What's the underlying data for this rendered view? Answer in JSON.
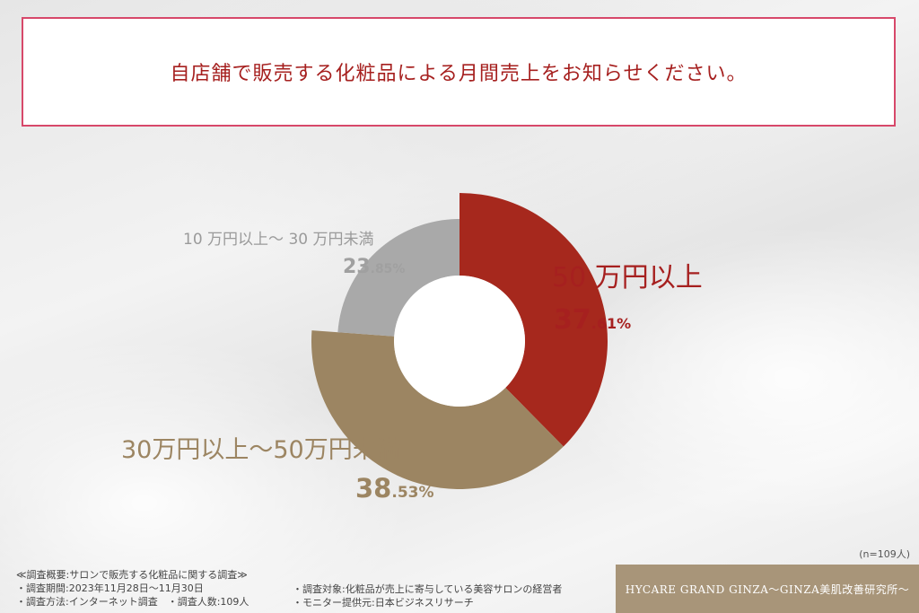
{
  "title": "自店舗で販売する化粧品による月間売上をお知らせください。",
  "chart_data": {
    "type": "pie",
    "categories": [
      "50 万円以上",
      "30万円以上～50万円未満",
      "10 万円以上～ 30 万円未満"
    ],
    "values": [
      37.61,
      38.53,
      23.85
    ],
    "labels": {
      "s0": {
        "name": "50 万円以上",
        "int": "37",
        "dec": ".61%"
      },
      "s1": {
        "name": "30万円以上～50万円未満",
        "int": "38",
        "dec": ".53%"
      },
      "s2": {
        "name": "10 万円以上～ 30 万円未満",
        "int": "23",
        "dec": ".85%"
      }
    },
    "colors": [
      "#a6281d",
      "#9c8562",
      "#a9a9a9"
    ]
  },
  "n_note": "(n=109人)",
  "survey": {
    "heading": "≪調査概要:サロンで販売する化粧品に関する調査≫",
    "period": "・調査期間:2023年11月28日～11月30日",
    "method": "・調査方法:インターネット調査　・調査人数:109人",
    "target": "・調査対象:化粧品が売上に寄与している美容サロンの経営者",
    "provider": "・モニター提供元:日本ビジネスリサーチ"
  },
  "brand": "HYCARE GRAND GINZA～GINZA美肌改善研究所～"
}
